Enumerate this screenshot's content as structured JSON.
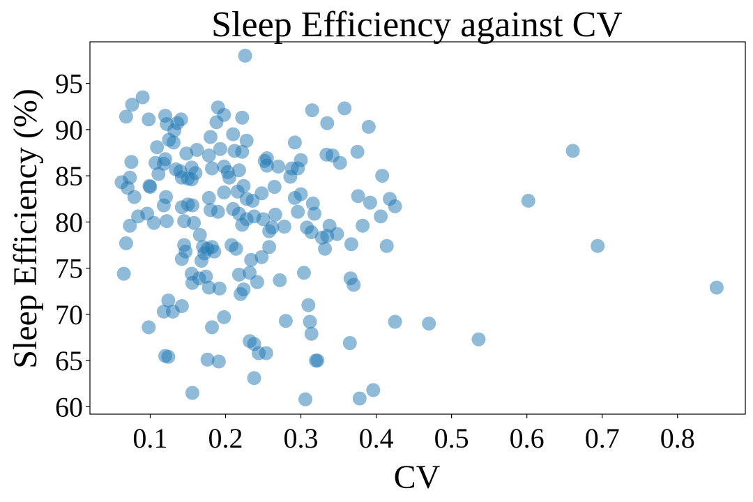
{
  "chart_data": {
    "type": "scatter",
    "title": "Sleep Efficiency against CV",
    "xlabel": "CV",
    "ylabel": "Sleep Efficiency (%)",
    "xlim": [
      0.02,
      0.89
    ],
    "ylim": [
      59.2,
      99.5
    ],
    "xticks": [
      "0.1",
      "0.2",
      "0.3",
      "0.4",
      "0.5",
      "0.6",
      "0.7",
      "0.8"
    ],
    "xtick_values": [
      0.1,
      0.2,
      0.3,
      0.4,
      0.5,
      0.6,
      0.7,
      0.8
    ],
    "yticks": [
      "60",
      "65",
      "70",
      "75",
      "80",
      "85",
      "90",
      "95"
    ],
    "ytick_values": [
      60,
      65,
      70,
      75,
      80,
      85,
      90,
      95
    ],
    "grid": false,
    "legend": "none",
    "marker_color": "#1f77b4",
    "points": [
      [
        0.226,
        98.0
      ],
      [
        0.09,
        93.5
      ],
      [
        0.076,
        92.7
      ],
      [
        0.12,
        91.5
      ],
      [
        0.068,
        91.4
      ],
      [
        0.098,
        91.1
      ],
      [
        0.141,
        91.1
      ],
      [
        0.122,
        90.6
      ],
      [
        0.136,
        90.7
      ],
      [
        0.132,
        89.9
      ],
      [
        0.19,
        92.4
      ],
      [
        0.198,
        91.6
      ],
      [
        0.222,
        91.3
      ],
      [
        0.315,
        92.1
      ],
      [
        0.358,
        92.3
      ],
      [
        0.335,
        90.7
      ],
      [
        0.39,
        90.3
      ],
      [
        0.188,
        90.8
      ],
      [
        0.125,
        88.9
      ],
      [
        0.131,
        88.6
      ],
      [
        0.109,
        88.1
      ],
      [
        0.18,
        89.2
      ],
      [
        0.21,
        89.5
      ],
      [
        0.228,
        88.8
      ],
      [
        0.292,
        88.6
      ],
      [
        0.193,
        87.9
      ],
      [
        0.162,
        87.8
      ],
      [
        0.222,
        87.6
      ],
      [
        0.212,
        87.7
      ],
      [
        0.334,
        87.3
      ],
      [
        0.342,
        87.2
      ],
      [
        0.375,
        87.6
      ],
      [
        0.661,
        87.7
      ],
      [
        0.075,
        86.5
      ],
      [
        0.107,
        86.4
      ],
      [
        0.12,
        86.8
      ],
      [
        0.148,
        87.4
      ],
      [
        0.178,
        87.2
      ],
      [
        0.252,
        86.6
      ],
      [
        0.255,
        86.9
      ],
      [
        0.3,
        86.7
      ],
      [
        0.352,
        86.4
      ],
      [
        0.118,
        86.3
      ],
      [
        0.134,
        85.7
      ],
      [
        0.14,
        85.5
      ],
      [
        0.155,
        85.9
      ],
      [
        0.16,
        85.3
      ],
      [
        0.182,
        85.8
      ],
      [
        0.198,
        86.0
      ],
      [
        0.203,
        85.4
      ],
      [
        0.218,
        85.6
      ],
      [
        0.255,
        86.1
      ],
      [
        0.27,
        86.0
      ],
      [
        0.288,
        85.8
      ],
      [
        0.296,
        85.8
      ],
      [
        0.062,
        84.3
      ],
      [
        0.073,
        84.8
      ],
      [
        0.07,
        83.7
      ],
      [
        0.099,
        83.9
      ],
      [
        0.1,
        83.8
      ],
      [
        0.111,
        85.2
      ],
      [
        0.142,
        84.8
      ],
      [
        0.15,
        84.7
      ],
      [
        0.155,
        84.6
      ],
      [
        0.205,
        84.8
      ],
      [
        0.224,
        83.9
      ],
      [
        0.265,
        83.8
      ],
      [
        0.286,
        84.9
      ],
      [
        0.408,
        85.0
      ],
      [
        0.079,
        82.7
      ],
      [
        0.121,
        82.7
      ],
      [
        0.178,
        82.6
      ],
      [
        0.198,
        83.2
      ],
      [
        0.216,
        83.3
      ],
      [
        0.228,
        82.5
      ],
      [
        0.236,
        82.3
      ],
      [
        0.248,
        83.1
      ],
      [
        0.292,
        82.6
      ],
      [
        0.3,
        83.0
      ],
      [
        0.316,
        82.0
      ],
      [
        0.376,
        82.8
      ],
      [
        0.392,
        82.1
      ],
      [
        0.418,
        82.5
      ],
      [
        0.425,
        81.7
      ],
      [
        0.602,
        82.3
      ],
      [
        0.084,
        80.6
      ],
      [
        0.096,
        80.9
      ],
      [
        0.118,
        81.8
      ],
      [
        0.142,
        81.6
      ],
      [
        0.15,
        81.9
      ],
      [
        0.156,
        81.8
      ],
      [
        0.18,
        81.3
      ],
      [
        0.19,
        81.1
      ],
      [
        0.21,
        81.4
      ],
      [
        0.218,
        80.9
      ],
      [
        0.228,
        80.3
      ],
      [
        0.238,
        80.6
      ],
      [
        0.25,
        80.3
      ],
      [
        0.266,
        80.8
      ],
      [
        0.296,
        81.1
      ],
      [
        0.318,
        80.9
      ],
      [
        0.406,
        80.6
      ],
      [
        0.073,
        79.6
      ],
      [
        0.105,
        79.9
      ],
      [
        0.122,
        80.1
      ],
      [
        0.145,
        80.1
      ],
      [
        0.158,
        79.9
      ],
      [
        0.222,
        79.7
      ],
      [
        0.262,
        79.4
      ],
      [
        0.278,
        79.5
      ],
      [
        0.308,
        79.4
      ],
      [
        0.314,
        78.9
      ],
      [
        0.328,
        78.3
      ],
      [
        0.335,
        78.5
      ],
      [
        0.338,
        79.6
      ],
      [
        0.348,
        78.7
      ],
      [
        0.382,
        79.6
      ],
      [
        0.166,
        78.6
      ],
      [
        0.258,
        79.0
      ],
      [
        0.068,
        77.7
      ],
      [
        0.145,
        77.5
      ],
      [
        0.17,
        77.3
      ],
      [
        0.176,
        77.1
      ],
      [
        0.182,
        77.3
      ],
      [
        0.208,
        77.5
      ],
      [
        0.214,
        77.1
      ],
      [
        0.258,
        77.3
      ],
      [
        0.332,
        77.1
      ],
      [
        0.367,
        77.6
      ],
      [
        0.414,
        77.4
      ],
      [
        0.694,
        77.4
      ],
      [
        0.147,
        76.8
      ],
      [
        0.172,
        76.6
      ],
      [
        0.185,
        76.8
      ],
      [
        0.142,
        76.0
      ],
      [
        0.168,
        75.8
      ],
      [
        0.234,
        75.9
      ],
      [
        0.248,
        76.2
      ],
      [
        0.065,
        74.4
      ],
      [
        0.155,
        74.4
      ],
      [
        0.165,
        73.9
      ],
      [
        0.174,
        74.1
      ],
      [
        0.218,
        74.3
      ],
      [
        0.232,
        74.5
      ],
      [
        0.242,
        73.5
      ],
      [
        0.272,
        73.7
      ],
      [
        0.304,
        74.5
      ],
      [
        0.366,
        73.9
      ],
      [
        0.156,
        73.4
      ],
      [
        0.178,
        72.9
      ],
      [
        0.192,
        72.8
      ],
      [
        0.22,
        72.2
      ],
      [
        0.224,
        72.7
      ],
      [
        0.37,
        73.2
      ],
      [
        0.852,
        72.9
      ],
      [
        0.124,
        71.5
      ],
      [
        0.142,
        70.9
      ],
      [
        0.118,
        70.3
      ],
      [
        0.13,
        70.3
      ],
      [
        0.31,
        71.0
      ],
      [
        0.098,
        68.6
      ],
      [
        0.182,
        68.6
      ],
      [
        0.198,
        69.7
      ],
      [
        0.28,
        69.3
      ],
      [
        0.312,
        69.2
      ],
      [
        0.314,
        67.9
      ],
      [
        0.425,
        69.2
      ],
      [
        0.47,
        69.0
      ],
      [
        0.536,
        67.3
      ],
      [
        0.232,
        67.1
      ],
      [
        0.238,
        66.8
      ],
      [
        0.244,
        65.8
      ],
      [
        0.254,
        65.8
      ],
      [
        0.365,
        66.9
      ],
      [
        0.12,
        65.5
      ],
      [
        0.124,
        65.4
      ],
      [
        0.176,
        65.1
      ],
      [
        0.191,
        64.9
      ],
      [
        0.32,
        65.0
      ],
      [
        0.322,
        65.0
      ],
      [
        0.238,
        63.1
      ],
      [
        0.156,
        61.5
      ],
      [
        0.306,
        60.8
      ],
      [
        0.378,
        60.9
      ],
      [
        0.396,
        61.8
      ]
    ]
  }
}
